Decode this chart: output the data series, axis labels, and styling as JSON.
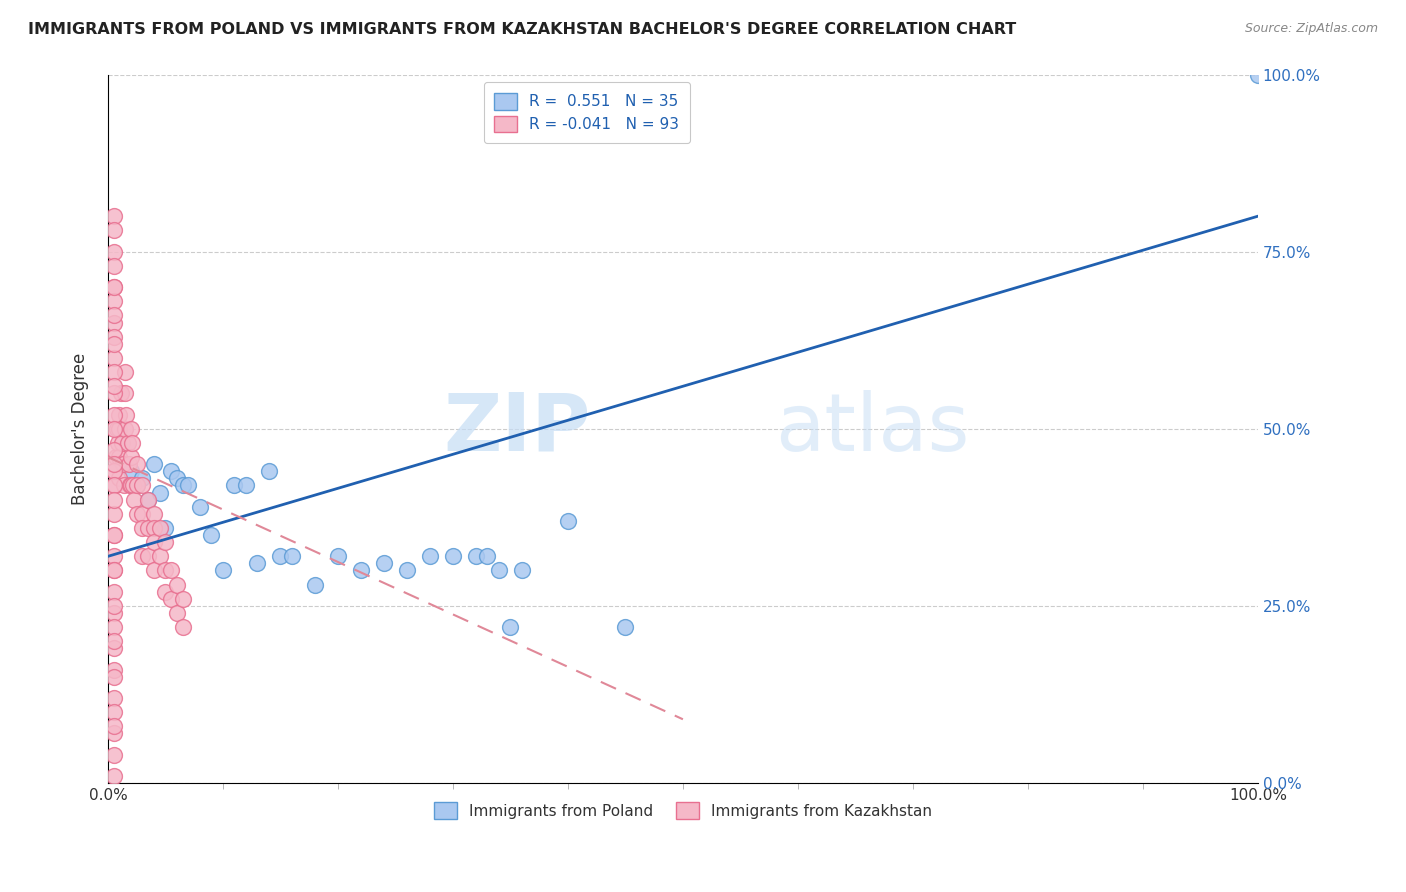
{
  "title": "IMMIGRANTS FROM POLAND VS IMMIGRANTS FROM KAZAKHSTAN BACHELOR'S DEGREE CORRELATION CHART",
  "source": "Source: ZipAtlas.com",
  "ylabel": "Bachelor's Degree",
  "xlim": [
    0,
    1.0
  ],
  "ylim": [
    0,
    1.0
  ],
  "xtick_positions": [
    0.0,
    1.0
  ],
  "xtick_labels": [
    "0.0%",
    "100.0%"
  ],
  "yticks": [
    0.0,
    0.25,
    0.5,
    0.75,
    1.0
  ],
  "ytick_labels_right": [
    "0.0%",
    "25.0%",
    "50.0%",
    "75.0%",
    "100.0%"
  ],
  "poland_color": "#aac8f0",
  "poland_edge_color": "#5b9bd5",
  "kazakhstan_color": "#f5b8c8",
  "kazakhstan_edge_color": "#e87090",
  "R_poland": 0.551,
  "N_poland": 35,
  "R_kazakhstan": -0.041,
  "N_kazakhstan": 93,
  "poland_line_color": "#2060b0",
  "kazakhstan_line_color": "#e08898",
  "watermark_zip": "ZIP",
  "watermark_atlas": "atlas",
  "poland_scatter_x": [
    0.02,
    0.025,
    0.03,
    0.035,
    0.04,
    0.045,
    0.05,
    0.055,
    0.06,
    0.065,
    0.07,
    0.08,
    0.09,
    0.1,
    0.11,
    0.12,
    0.13,
    0.14,
    0.15,
    0.16,
    0.18,
    0.2,
    0.22,
    0.24,
    0.26,
    0.28,
    0.3,
    0.32,
    0.33,
    0.34,
    0.35,
    0.36,
    0.4,
    0.45,
    1.0
  ],
  "poland_scatter_y": [
    0.44,
    0.42,
    0.43,
    0.4,
    0.45,
    0.41,
    0.36,
    0.44,
    0.43,
    0.42,
    0.42,
    0.39,
    0.35,
    0.3,
    0.42,
    0.42,
    0.31,
    0.44,
    0.32,
    0.32,
    0.28,
    0.32,
    0.3,
    0.31,
    0.3,
    0.32,
    0.32,
    0.32,
    0.32,
    0.3,
    0.22,
    0.3,
    0.37,
    0.22,
    1.0
  ],
  "kazakhstan_scatter_x": [
    0.005,
    0.006,
    0.007,
    0.008,
    0.009,
    0.01,
    0.01,
    0.01,
    0.01,
    0.011,
    0.012,
    0.013,
    0.014,
    0.015,
    0.015,
    0.015,
    0.016,
    0.017,
    0.018,
    0.019,
    0.02,
    0.02,
    0.02,
    0.021,
    0.022,
    0.023,
    0.025,
    0.025,
    0.025,
    0.03,
    0.03,
    0.03,
    0.03,
    0.035,
    0.035,
    0.035,
    0.04,
    0.04,
    0.04,
    0.04,
    0.045,
    0.045,
    0.05,
    0.05,
    0.05,
    0.055,
    0.055,
    0.06,
    0.06,
    0.065,
    0.065,
    0.005,
    0.005,
    0.005,
    0.005,
    0.005,
    0.005,
    0.005,
    0.005,
    0.005,
    0.005,
    0.005,
    0.005,
    0.005,
    0.005,
    0.005,
    0.005,
    0.005,
    0.005,
    0.005,
    0.005,
    0.005,
    0.005,
    0.005,
    0.005,
    0.005,
    0.005,
    0.005,
    0.005,
    0.005,
    0.005,
    0.005,
    0.005,
    0.005,
    0.005,
    0.005,
    0.005,
    0.005,
    0.005,
    0.005,
    0.005,
    0.005,
    0.005
  ],
  "kazakhstan_scatter_y": [
    0.44,
    0.42,
    0.46,
    0.5,
    0.48,
    0.52,
    0.5,
    0.46,
    0.43,
    0.55,
    0.48,
    0.45,
    0.42,
    0.58,
    0.55,
    0.5,
    0.52,
    0.48,
    0.45,
    0.42,
    0.5,
    0.46,
    0.42,
    0.48,
    0.42,
    0.4,
    0.45,
    0.42,
    0.38,
    0.42,
    0.38,
    0.36,
    0.32,
    0.4,
    0.36,
    0.32,
    0.38,
    0.36,
    0.34,
    0.3,
    0.36,
    0.32,
    0.34,
    0.3,
    0.27,
    0.3,
    0.26,
    0.28,
    0.24,
    0.26,
    0.22,
    0.8,
    0.78,
    0.75,
    0.73,
    0.7,
    0.68,
    0.65,
    0.63,
    0.6,
    0.58,
    0.55,
    0.52,
    0.5,
    0.47,
    0.44,
    0.42,
    0.38,
    0.35,
    0.32,
    0.3,
    0.27,
    0.24,
    0.22,
    0.19,
    0.16,
    0.12,
    0.1,
    0.07,
    0.04,
    0.01,
    0.45,
    0.4,
    0.35,
    0.3,
    0.25,
    0.2,
    0.15,
    0.08,
    0.56,
    0.62,
    0.66,
    0.7
  ],
  "poland_line_x0": 0.0,
  "poland_line_y0": 0.32,
  "poland_line_x1": 1.0,
  "poland_line_y1": 0.8,
  "kaz_line_x0": 0.0,
  "kaz_line_y0": 0.46,
  "kaz_line_x1": 0.5,
  "kaz_line_y1": 0.09
}
